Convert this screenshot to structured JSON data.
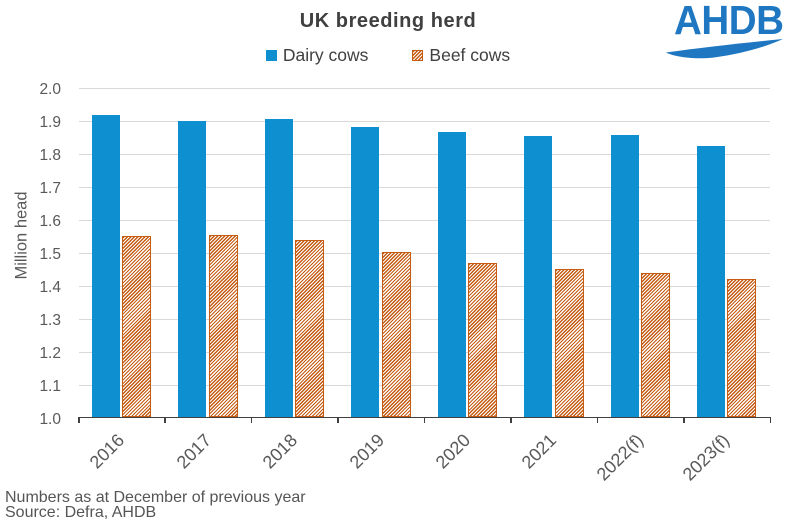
{
  "chart_data": {
    "type": "bar",
    "title": "UK breeding herd",
    "ylabel": "Million head",
    "xlabel": "",
    "ylim": [
      1.0,
      2.0
    ],
    "ytick_step": 0.1,
    "grid": true,
    "legend_position": "top",
    "categories": [
      "2016",
      "2017",
      "2018",
      "2019",
      "2020",
      "2021",
      "2022(f)",
      "2023(f)"
    ],
    "series": [
      {
        "name": "Dairy cows",
        "style": "solid",
        "color": "#0e90d0",
        "values": [
          1.917,
          1.9,
          1.905,
          1.881,
          1.867,
          1.854,
          1.857,
          1.825
        ]
      },
      {
        "name": "Beef cows",
        "style": "hatched",
        "color": "#c55a11",
        "values": [
          1.55,
          1.555,
          1.54,
          1.502,
          1.47,
          1.452,
          1.438,
          1.42
        ]
      }
    ]
  },
  "footnotes": {
    "line1": "Numbers as at December of previous year",
    "line2": "Source: Defra, AHDB"
  },
  "logo": {
    "text": "AHDB",
    "color": "#1e77c0"
  },
  "colors": {
    "dairy": "#0e90d0",
    "beef": "#c55a11",
    "title": "#404040",
    "axis_line": "#404040",
    "tick_label": "#595959",
    "gridline": "#d9d9d9",
    "footnote": "#555555",
    "logo_blue": "#1e77c0"
  }
}
